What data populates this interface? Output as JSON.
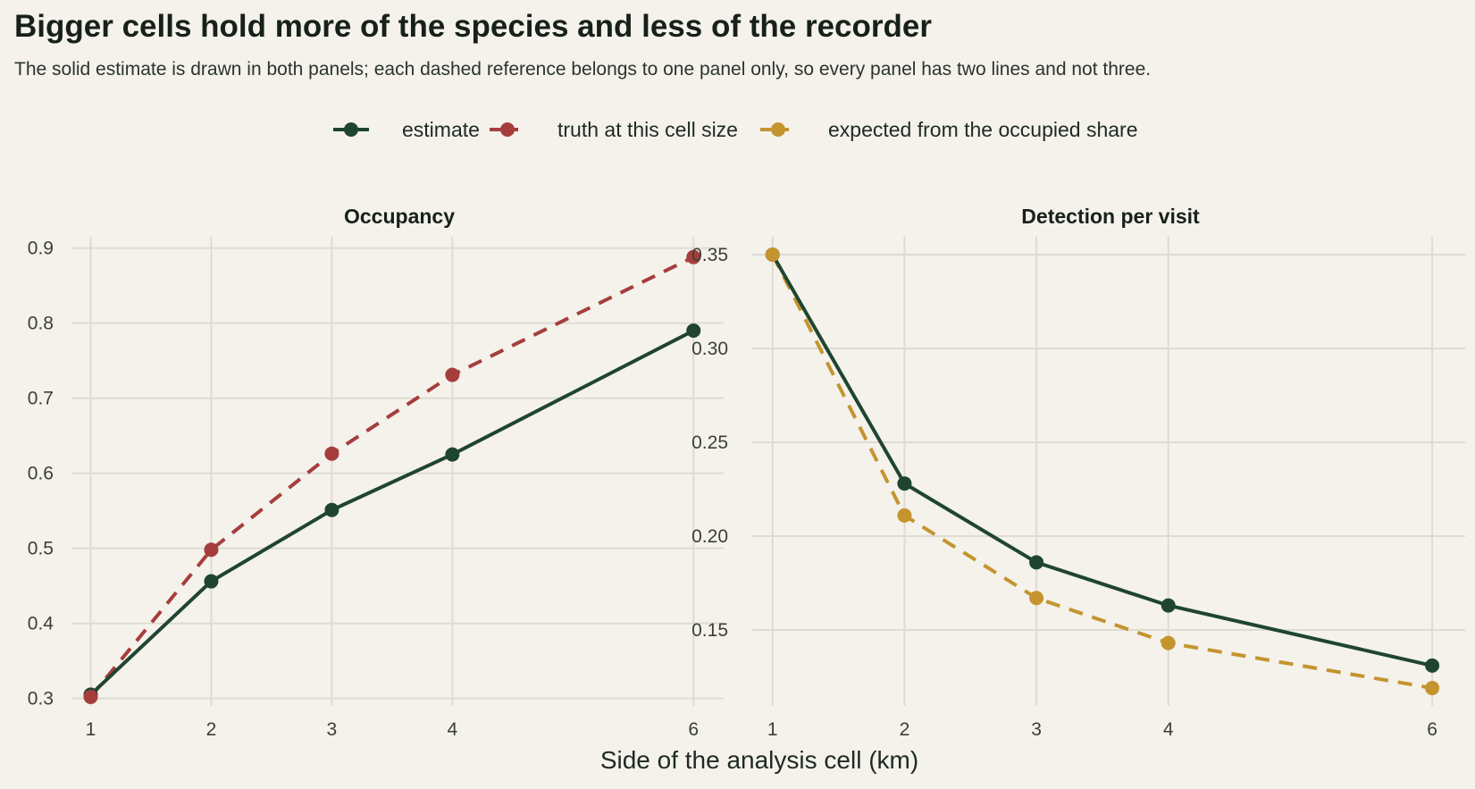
{
  "title": "Bigger cells hold more of the species and less of the recorder",
  "subtitle": "The solid estimate is drawn in both panels; each dashed reference belongs to one panel only, so every panel has two lines and not three.",
  "colors": {
    "estimate": "#1f4530",
    "truth": "#a63d3d",
    "expected": "#c4942f",
    "background": "#f4f2eb",
    "grid": "#dedbd3"
  },
  "legend": {
    "placement": "top",
    "items": [
      {
        "key": "estimate",
        "label": "estimate",
        "dashed": false
      },
      {
        "key": "truth",
        "label": "truth at this cell size",
        "dashed": true
      },
      {
        "key": "expected",
        "label": "expected from the occupied share",
        "dashed": true
      }
    ]
  },
  "chart_data": [
    {
      "type": "line",
      "title": "Occupancy",
      "xlabel": "Side of the analysis cell (km)",
      "ylabel": "",
      "x": [
        1,
        2,
        3,
        4,
        6
      ],
      "xticks": [
        "1",
        "2",
        "3",
        "4",
        "6"
      ],
      "xlim": [
        0.9,
        6.25
      ],
      "ylim": [
        0.29,
        0.915
      ],
      "yticks": [
        "0.3",
        "0.4",
        "0.5",
        "0.6",
        "0.7",
        "0.8",
        "0.9"
      ],
      "grid": true,
      "series": [
        {
          "name": "estimate",
          "key": "estimate",
          "dashed": false,
          "values": [
            0.305,
            0.456,
            0.551,
            0.625,
            0.79
          ]
        },
        {
          "name": "truth at this cell size",
          "key": "truth",
          "dashed": true,
          "values": [
            0.302,
            0.498,
            0.626,
            0.731,
            0.888
          ]
        }
      ]
    },
    {
      "type": "line",
      "title": "Detection per visit",
      "xlabel": "Side of the analysis cell (km)",
      "ylabel": "",
      "x": [
        1,
        2,
        3,
        4,
        6
      ],
      "xticks": [
        "1",
        "2",
        "3",
        "4",
        "6"
      ],
      "xlim": [
        0.9,
        6.25
      ],
      "ylim": [
        0.1095,
        0.3595
      ],
      "yticks": [
        "0.15",
        "0.20",
        "0.25",
        "0.30",
        "0.35"
      ],
      "grid": true,
      "series": [
        {
          "name": "estimate",
          "key": "estimate",
          "dashed": false,
          "values": [
            0.35,
            0.228,
            0.186,
            0.163,
            0.131
          ]
        },
        {
          "name": "expected from the occupied share",
          "key": "expected",
          "dashed": true,
          "values": [
            0.35,
            0.211,
            0.167,
            0.143,
            0.119
          ]
        }
      ]
    }
  ]
}
